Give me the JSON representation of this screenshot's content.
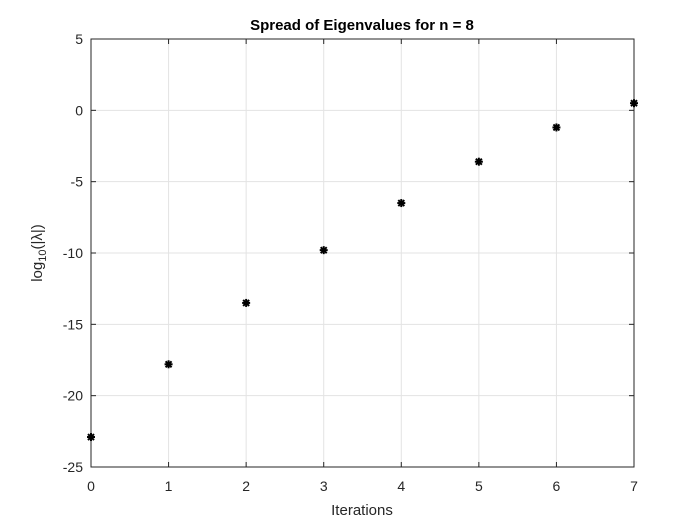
{
  "chart_data": {
    "type": "scatter",
    "title": "Spread of Eigenvalues for n = 8",
    "xlabel": "Iterations",
    "ylabel": {
      "base": "log",
      "subscript": "10",
      "argument": "(|λ|)"
    },
    "xlim": [
      0,
      7
    ],
    "ylim": [
      -25,
      5
    ],
    "xticks": [
      0,
      1,
      2,
      3,
      4,
      5,
      6,
      7
    ],
    "yticks": [
      5,
      0,
      -5,
      -10,
      -15,
      -20,
      -25
    ],
    "grid": true,
    "marker_color": "#000000",
    "points": [
      {
        "x": 0,
        "y": -22.9
      },
      {
        "x": 1,
        "y": -17.8
      },
      {
        "x": 2,
        "y": -13.5
      },
      {
        "x": 3,
        "y": -9.8
      },
      {
        "x": 4,
        "y": -6.5
      },
      {
        "x": 5,
        "y": -3.6
      },
      {
        "x": 6,
        "y": -1.2
      },
      {
        "x": 7,
        "y": 0.5
      }
    ]
  }
}
